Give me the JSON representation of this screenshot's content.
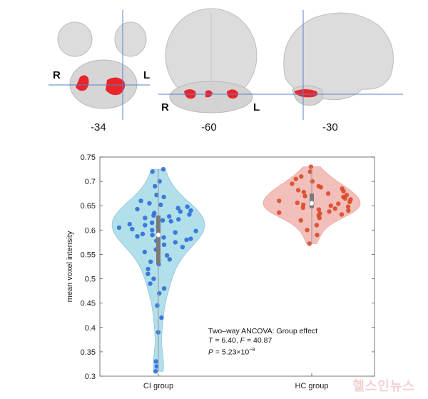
{
  "brain_panel": {
    "slices": [
      {
        "coord": "-34",
        "left_label": "R",
        "right_label": "L"
      },
      {
        "coord": "-60",
        "left_label": "R",
        "right_label": "L"
      },
      {
        "coord": "-30"
      }
    ],
    "colors": {
      "tissue": "#d9d9d9",
      "tissue_edge": "#b9b9b9",
      "cluster": "#e8262a",
      "crosshair": "#5b7fc4"
    }
  },
  "chart_data": {
    "type": "violin",
    "categories": [
      "CI group",
      "HC group"
    ],
    "ylabel": "mean voxel intensity",
    "ylim": [
      0.3,
      0.75
    ],
    "yticks": [
      "0.3",
      "0.35",
      "0.4",
      "0.45",
      "0.5",
      "0.55",
      "0.6",
      "0.65",
      "0.7",
      "0.75"
    ],
    "series": [
      {
        "name": "CI group",
        "fill": "#a8dbe8",
        "point_color": "#2f6fd6",
        "median": 0.59,
        "q1": 0.53,
        "q3": 0.63,
        "values": [
          0.725,
          0.72,
          0.7,
          0.69,
          0.672,
          0.668,
          0.66,
          0.655,
          0.652,
          0.648,
          0.645,
          0.643,
          0.64,
          0.638,
          0.635,
          0.632,
          0.63,
          0.628,
          0.625,
          0.622,
          0.62,
          0.618,
          0.615,
          0.612,
          0.61,
          0.607,
          0.605,
          0.602,
          0.6,
          0.598,
          0.595,
          0.592,
          0.59,
          0.587,
          0.585,
          0.582,
          0.58,
          0.578,
          0.575,
          0.57,
          0.565,
          0.56,
          0.555,
          0.548,
          0.54,
          0.535,
          0.53,
          0.52,
          0.51,
          0.5,
          0.49,
          0.48,
          0.47,
          0.445,
          0.42,
          0.39,
          0.33,
          0.32,
          0.31
        ]
      },
      {
        "name": "HC group",
        "fill": "#f2b8b3",
        "point_color": "#d94a2a",
        "median": 0.655,
        "q1": 0.645,
        "q3": 0.675,
        "values": [
          0.73,
          0.72,
          0.71,
          0.705,
          0.7,
          0.695,
          0.69,
          0.688,
          0.685,
          0.682,
          0.68,
          0.678,
          0.675,
          0.672,
          0.67,
          0.668,
          0.665,
          0.663,
          0.66,
          0.658,
          0.656,
          0.654,
          0.652,
          0.65,
          0.648,
          0.646,
          0.644,
          0.642,
          0.64,
          0.638,
          0.636,
          0.634,
          0.632,
          0.63,
          0.625,
          0.62,
          0.61,
          0.6,
          0.59,
          0.572
        ]
      }
    ],
    "annotation": {
      "line1": "Two–way ANCOVA: Group effect",
      "line2_T_label": "T",
      "line2_T_value": " = 6.40, ",
      "line2_F_label": "F",
      "line2_F_value": " = 40.87",
      "line3_P_label": "P",
      "line3_P_value": " = 5.23×10",
      "line3_P_exp": "−9"
    }
  },
  "watermark": "헬스인뉴스"
}
